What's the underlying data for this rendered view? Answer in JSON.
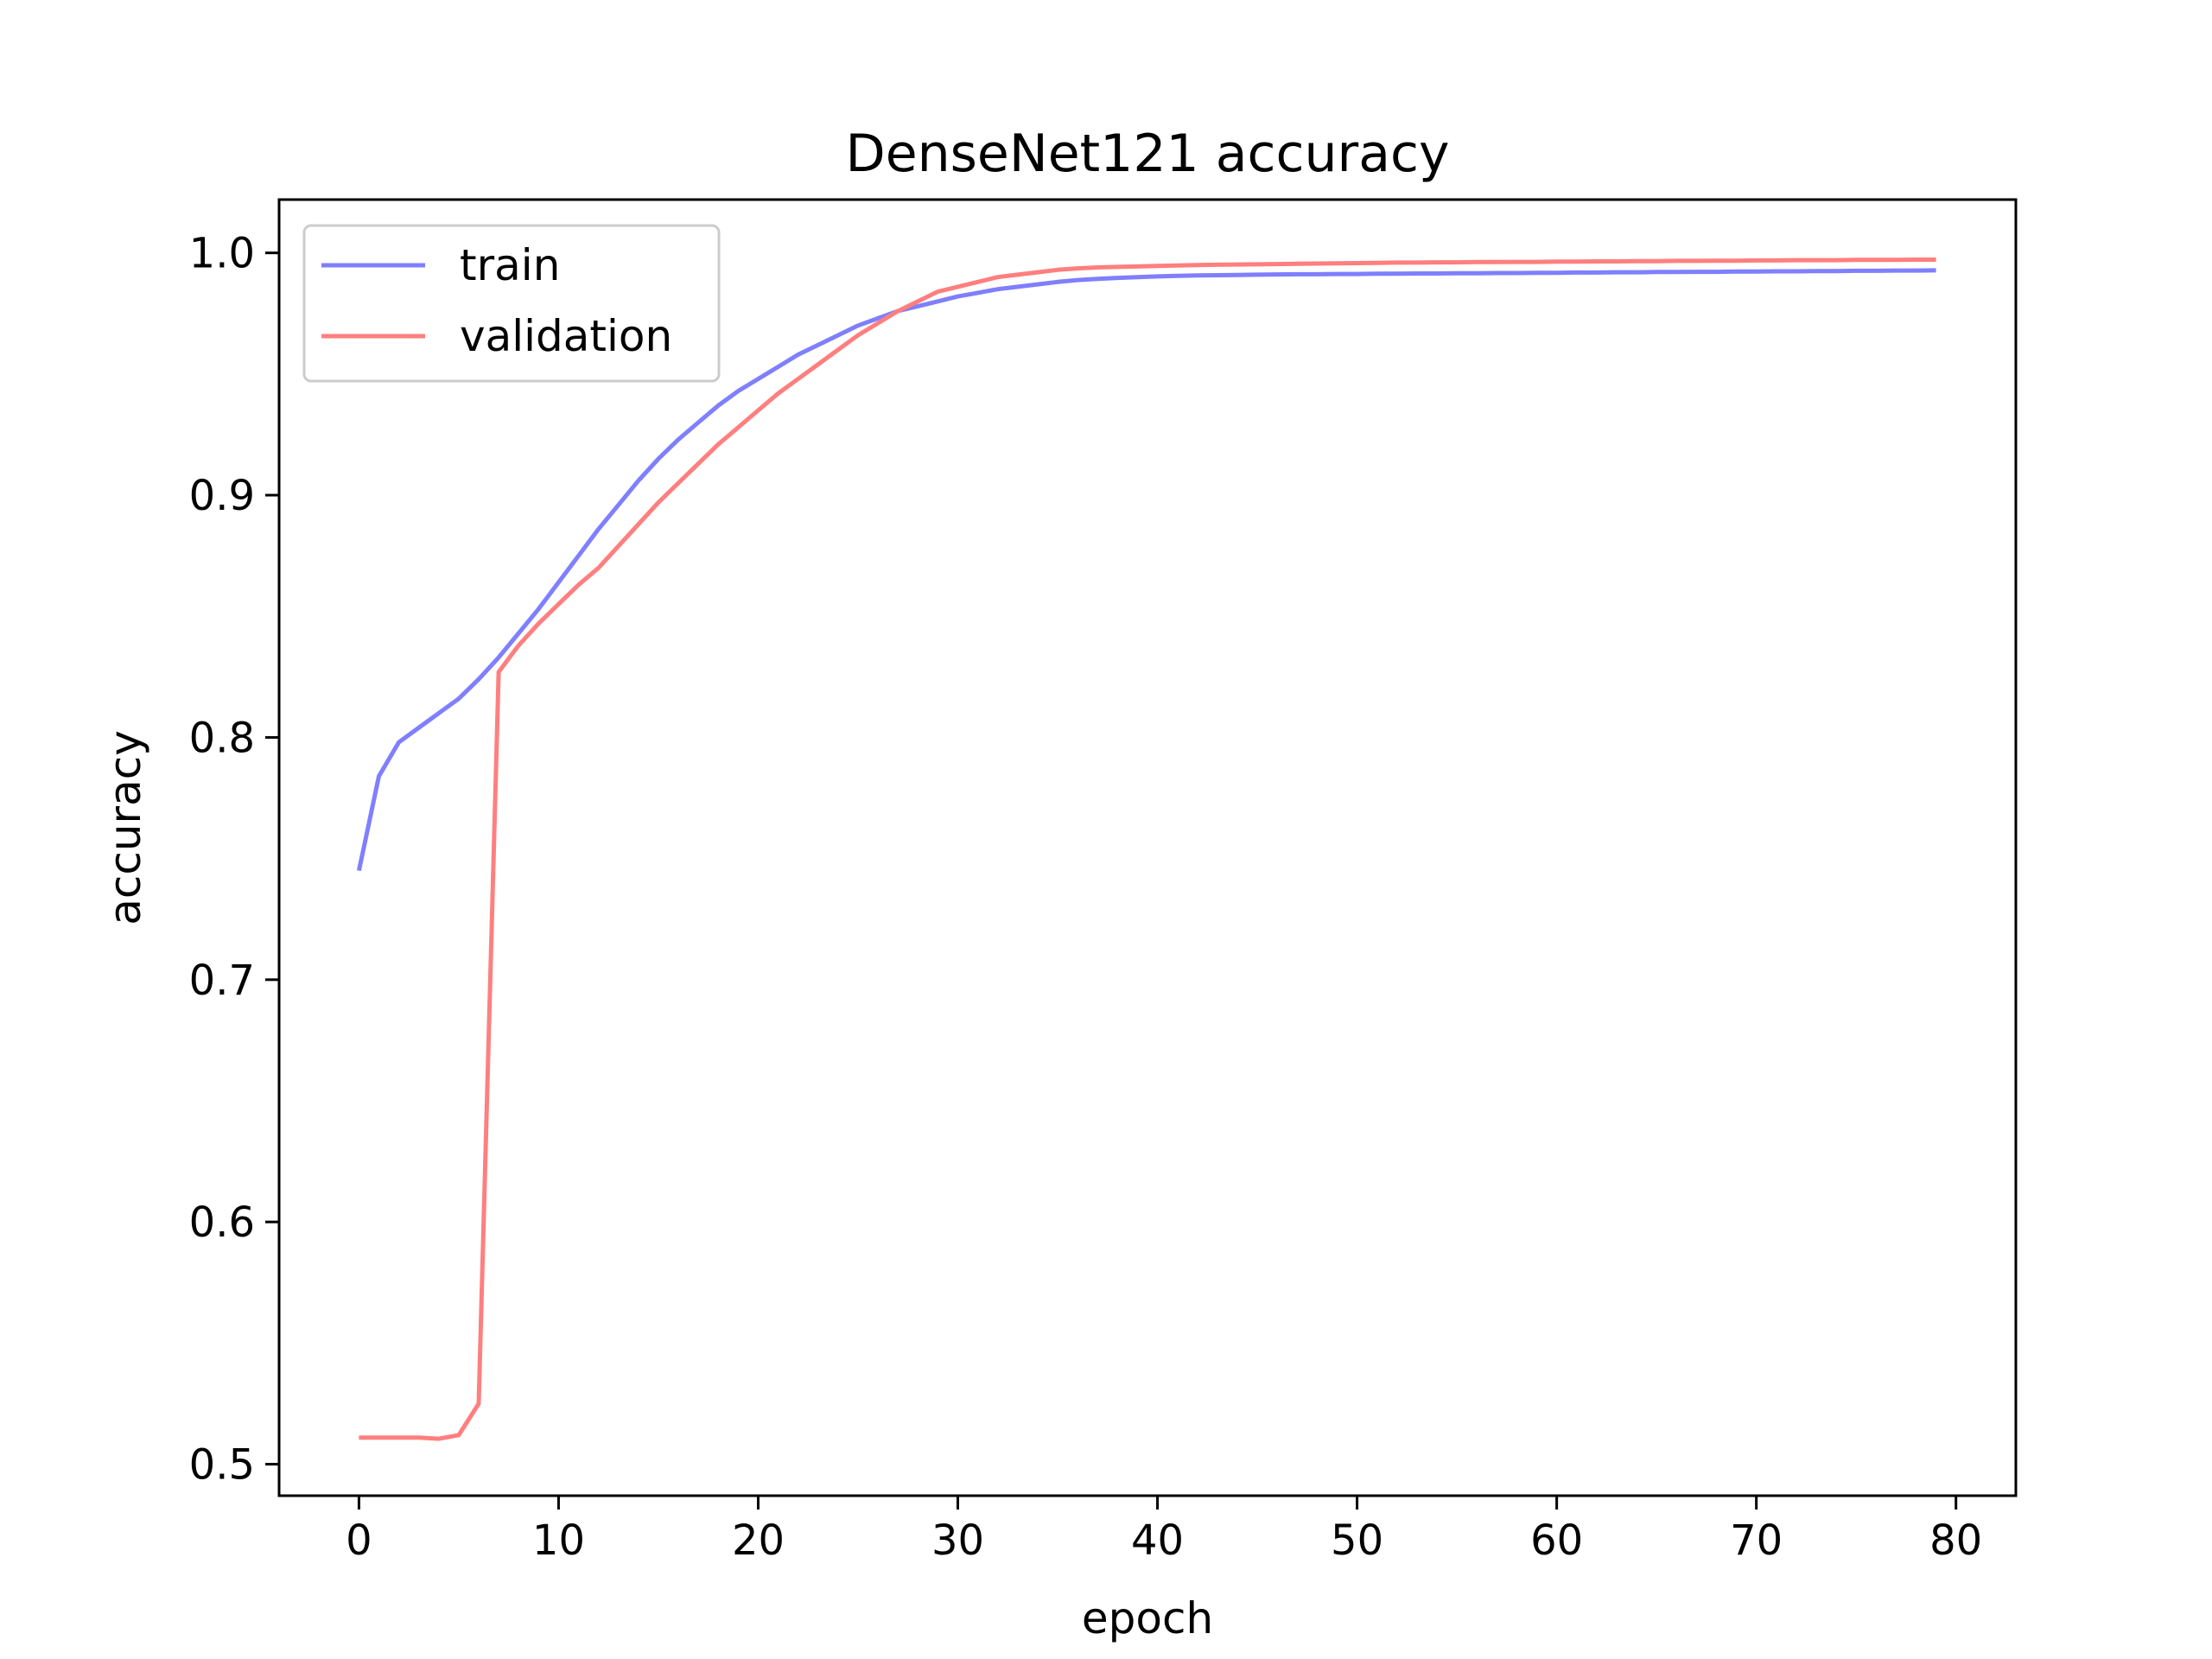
{
  "chart_data": {
    "type": "line",
    "title": "DenseNet121 accuracy",
    "xlabel": "epoch",
    "ylabel": "accuracy",
    "xlim": [
      -4,
      83
    ],
    "ylim": [
      0.487,
      1.022
    ],
    "xticks": [
      0,
      10,
      20,
      30,
      40,
      50,
      60,
      70,
      80
    ],
    "yticks": [
      0.5,
      0.6,
      0.7,
      0.8,
      0.9,
      1.0
    ],
    "xtick_labels": [
      "0",
      "10",
      "20",
      "30",
      "40",
      "50",
      "60",
      "70",
      "80"
    ],
    "ytick_labels": [
      "0.5",
      "0.6",
      "0.7",
      "0.8",
      "0.9",
      "1.0"
    ],
    "grid": false,
    "legend_position": "upper-left",
    "series": [
      {
        "name": "train",
        "color": "#7f7fff",
        "x": [
          0,
          1,
          2,
          3,
          4,
          5,
          6,
          7,
          8,
          9,
          10,
          11,
          12,
          13,
          14,
          15,
          16,
          17,
          18,
          19,
          20,
          21,
          22,
          23,
          24,
          25,
          26,
          27,
          28,
          29,
          30,
          31,
          32,
          33,
          34,
          35,
          36,
          37,
          38,
          39,
          40,
          41,
          42,
          43,
          44,
          45,
          46,
          47,
          48,
          49,
          50,
          51,
          52,
          53,
          54,
          55,
          56,
          57,
          58,
          59,
          60,
          61,
          62,
          63,
          64,
          65,
          66,
          67,
          68,
          69,
          70,
          71,
          72,
          73,
          74,
          75,
          76,
          77,
          78,
          79
        ],
        "values": [
          0.745,
          0.784,
          0.798,
          0.804,
          0.81,
          0.816,
          0.824,
          0.833,
          0.843,
          0.853,
          0.864,
          0.875,
          0.886,
          0.896,
          0.906,
          0.915,
          0.923,
          0.93,
          0.937,
          0.943,
          0.948,
          0.953,
          0.958,
          0.962,
          0.966,
          0.97,
          0.973,
          0.976,
          0.978,
          0.98,
          0.982,
          0.9835,
          0.985,
          0.986,
          0.987,
          0.988,
          0.9888,
          0.9893,
          0.9897,
          0.99,
          0.9903,
          0.9905,
          0.9907,
          0.9908,
          0.9909,
          0.991,
          0.9911,
          0.9912,
          0.9912,
          0.9913,
          0.9913,
          0.9914,
          0.9914,
          0.9915,
          0.9915,
          0.9916,
          0.9916,
          0.9917,
          0.9917,
          0.9918,
          0.9918,
          0.9919,
          0.9919,
          0.992,
          0.992,
          0.9921,
          0.9921,
          0.9922,
          0.9922,
          0.9923,
          0.9923,
          0.9924,
          0.9924,
          0.9925,
          0.9925,
          0.9926,
          0.9926,
          0.9927,
          0.9927,
          0.9928
        ]
      },
      {
        "name": "validation",
        "color": "#ff7f7f",
        "x": [
          0,
          1,
          2,
          3,
          4,
          5,
          6,
          7,
          8,
          9,
          10,
          11,
          12,
          13,
          14,
          15,
          16,
          17,
          18,
          19,
          20,
          21,
          22,
          23,
          24,
          25,
          26,
          27,
          28,
          29,
          30,
          31,
          32,
          33,
          34,
          35,
          36,
          37,
          38,
          39,
          40,
          41,
          42,
          43,
          44,
          45,
          46,
          47,
          48,
          49,
          50,
          51,
          52,
          53,
          54,
          55,
          56,
          57,
          58,
          59,
          60,
          61,
          62,
          63,
          64,
          65,
          66,
          67,
          68,
          69,
          70,
          71,
          72,
          73,
          74,
          75,
          76,
          77,
          78,
          79
        ],
        "values": [
          0.511,
          0.511,
          0.511,
          0.511,
          0.5105,
          0.512,
          0.525,
          0.827,
          0.838,
          0.847,
          0.855,
          0.863,
          0.87,
          0.879,
          0.888,
          0.897,
          0.905,
          0.913,
          0.921,
          0.928,
          0.935,
          0.942,
          0.948,
          0.954,
          0.96,
          0.966,
          0.971,
          0.976,
          0.98,
          0.984,
          0.986,
          0.988,
          0.99,
          0.991,
          0.992,
          0.993,
          0.9936,
          0.994,
          0.9942,
          0.9944,
          0.9946,
          0.9948,
          0.995,
          0.9951,
          0.9952,
          0.9953,
          0.9954,
          0.9955,
          0.9956,
          0.9957,
          0.9958,
          0.9959,
          0.996,
          0.996,
          0.9961,
          0.9961,
          0.9962,
          0.9962,
          0.9963,
          0.9963,
          0.9964,
          0.9964,
          0.9965,
          0.9965,
          0.9966,
          0.9966,
          0.9967,
          0.9967,
          0.9968,
          0.9968,
          0.9969,
          0.9969,
          0.997,
          0.997,
          0.997,
          0.9971,
          0.9971,
          0.9971,
          0.9972,
          0.9972
        ]
      }
    ]
  }
}
